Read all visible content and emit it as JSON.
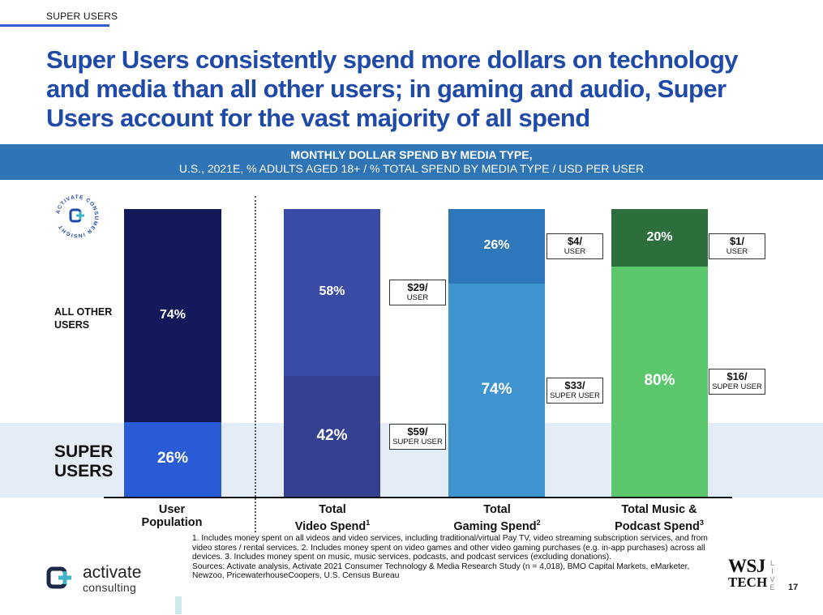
{
  "section_tag": "SUPER USERS",
  "headline": "Super Users consistently spend more dollars on technology and media than all other users; in gaming and audio, Super Users account for the vast majority of all spend",
  "banner": {
    "line1": "MONTHLY DOLLAR SPEND BY MEDIA TYPE,",
    "line2": "U.S., 2021E, % ADULTS AGED 18+ / % TOTAL SPEND BY MEDIA TYPE / USD PER USER"
  },
  "badge": {
    "text": "ACTIVATE CONSUMER INSIGHT",
    "icon": "activate-logo-icon"
  },
  "row_labels": {
    "all_other": "ALL OTHER USERS",
    "super": "SUPER USERS"
  },
  "chart_data": {
    "type": "bar",
    "stacked": true,
    "categories": [
      "User Population",
      "Total Video Spend",
      "Total Gaming Spend",
      "Total Music & Podcast Spend"
    ],
    "category_footnotes": [
      "",
      "1",
      "2",
      "3"
    ],
    "series": [
      {
        "name": "SUPER USERS",
        "values": [
          26,
          42,
          74,
          80
        ]
      },
      {
        "name": "ALL OTHER USERS",
        "values": [
          74,
          58,
          26,
          20
        ]
      }
    ],
    "value_labels": {
      "super": [
        "26%",
        "42%",
        "74%",
        "80%"
      ],
      "other": [
        "74%",
        "58%",
        "26%",
        "20%"
      ]
    },
    "callouts": [
      null,
      {
        "other": {
          "amount": "$29/",
          "unit": "USER"
        },
        "super": {
          "amount": "$59/",
          "unit": "SUPER USER"
        }
      },
      {
        "other": {
          "amount": "$4/",
          "unit": "USER"
        },
        "super": {
          "amount": "$33/",
          "unit": "SUPER USER"
        }
      },
      {
        "other": {
          "amount": "$1/",
          "unit": "USER"
        },
        "super": {
          "amount": "$16/",
          "unit": "SUPER USER"
        }
      }
    ],
    "colors": {
      "other": [
        "#121a5c",
        "#3a4ba6",
        "#2d78bb",
        "#2d6f3c"
      ],
      "super": [
        "#2a5bd6",
        "#33408f",
        "#3f93cf",
        "#5bc66b"
      ]
    },
    "ylim": [
      0,
      100
    ]
  },
  "footnotes": "1. Includes money spent on all videos and video services, including traditional/virtual Pay TV, video streaming subscription services, and from video stores / rental services.  2. Includes money spent on video games and other video gaming purchases (e.g. in-app purchases) across all devices.  3. Includes money spent on music, music services, podcasts, and podcast services (excluding donations).",
  "sources": "Sources: Activate analysis, Activate 2021 Consumer Technology & Media Research Study (n = 4,018), BMO Capital Markets, eMarketer, Newzoo, PricewaterhouseCoopers, U.S. Census Bureau",
  "logo": {
    "word": "activate",
    "sub": "consulting"
  },
  "partner": {
    "line1": "WSJ",
    "line2": "TECH",
    "live": "LIVE"
  },
  "page_number": "17"
}
